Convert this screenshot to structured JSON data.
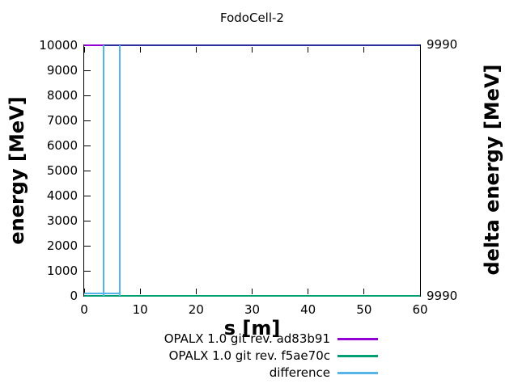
{
  "title": "FodoCell-2",
  "axes": {
    "xlabel": "s [m]",
    "ylabel": "energy [MeV]",
    "y2label": "delta energy [MeV]"
  },
  "legend": [
    {
      "label": "OPALX 1.0 git rev. ad83b91",
      "color": "#9400d3"
    },
    {
      "label": "OPALX 1.0 git rev. f5ae70c",
      "color": "#009e73"
    },
    {
      "label": "difference",
      "color": "#56b4e9"
    }
  ],
  "chart_data": {
    "type": "line",
    "title": "FodoCell-2",
    "xlabel": "s [m]",
    "ylabel": "energy [MeV]",
    "y2label": "delta energy [MeV]",
    "xlim": [
      0,
      60
    ],
    "ylim": [
      0,
      10000
    ],
    "xticks": [
      0,
      10,
      20,
      30,
      40,
      50,
      60
    ],
    "yticks": [
      0,
      1000,
      2000,
      3000,
      4000,
      5000,
      6000,
      7000,
      8000,
      9000,
      10000
    ],
    "y2ticks": [
      {
        "label": "9990",
        "pos": "top"
      },
      {
        "label": "9990",
        "pos": "bottom"
      }
    ],
    "grid": false,
    "legend_position": "below-plot-right",
    "series": [
      {
        "name": "OPALX 1.0 git rev. ad83b91",
        "color": "#9400d3",
        "axis": "left",
        "x": [
          0,
          60
        ],
        "y": [
          10000,
          10000
        ],
        "note": "constant 10000 MeV, coincides with top plot border"
      },
      {
        "name": "OPALX 1.0 git rev. f5ae70c",
        "color": "#009e73",
        "axis": "left",
        "x": [
          0,
          60
        ],
        "y": [
          0,
          0
        ],
        "note": "constant ~0 MeV, coincides with bottom plot border"
      },
      {
        "name": "difference",
        "color": "#56b4e9",
        "axis": "right",
        "value_approx": 9990,
        "spikes_at_s": [
          3.4,
          6.3
        ],
        "note": "~9990 MeV everywhere (degenerate right-axis range, both end labels read 9990); narrow full-height vertical excursions at s≈3.4 m and s≈6.3 m; sits near bottom of range for s<6.5 then along top of range to s=60"
      }
    ],
    "render_segments": [
      {
        "name": "curve-rev1-line",
        "color": "#9400d3",
        "type": "h",
        "x1": 0,
        "x2": 60,
        "y": 10000,
        "thick": 2
      },
      {
        "name": "curve-rev2-line",
        "color": "#009e73",
        "type": "h",
        "x1": 0,
        "x2": 60,
        "y": 0,
        "thick": 2
      },
      {
        "name": "curve-diff-top-line",
        "color": "#2d2d9f",
        "type": "h",
        "x1": 3.4,
        "x2": 60,
        "y": 10000,
        "thick": 2
      },
      {
        "name": "curve-diff-bottom-line",
        "color": "#56b4e9",
        "type": "h",
        "x1": 0,
        "x2": 6.5,
        "y": 110,
        "thick": 2
      },
      {
        "name": "curve-diff-spike-1",
        "color": "#56b4e9",
        "type": "v",
        "x": 3.4,
        "y1": 0,
        "y2": 10000,
        "thick": 2
      },
      {
        "name": "curve-diff-spike-2",
        "color": "#56b4e9",
        "type": "v",
        "x": 6.3,
        "y1": 0,
        "y2": 10000,
        "thick": 2
      }
    ]
  }
}
